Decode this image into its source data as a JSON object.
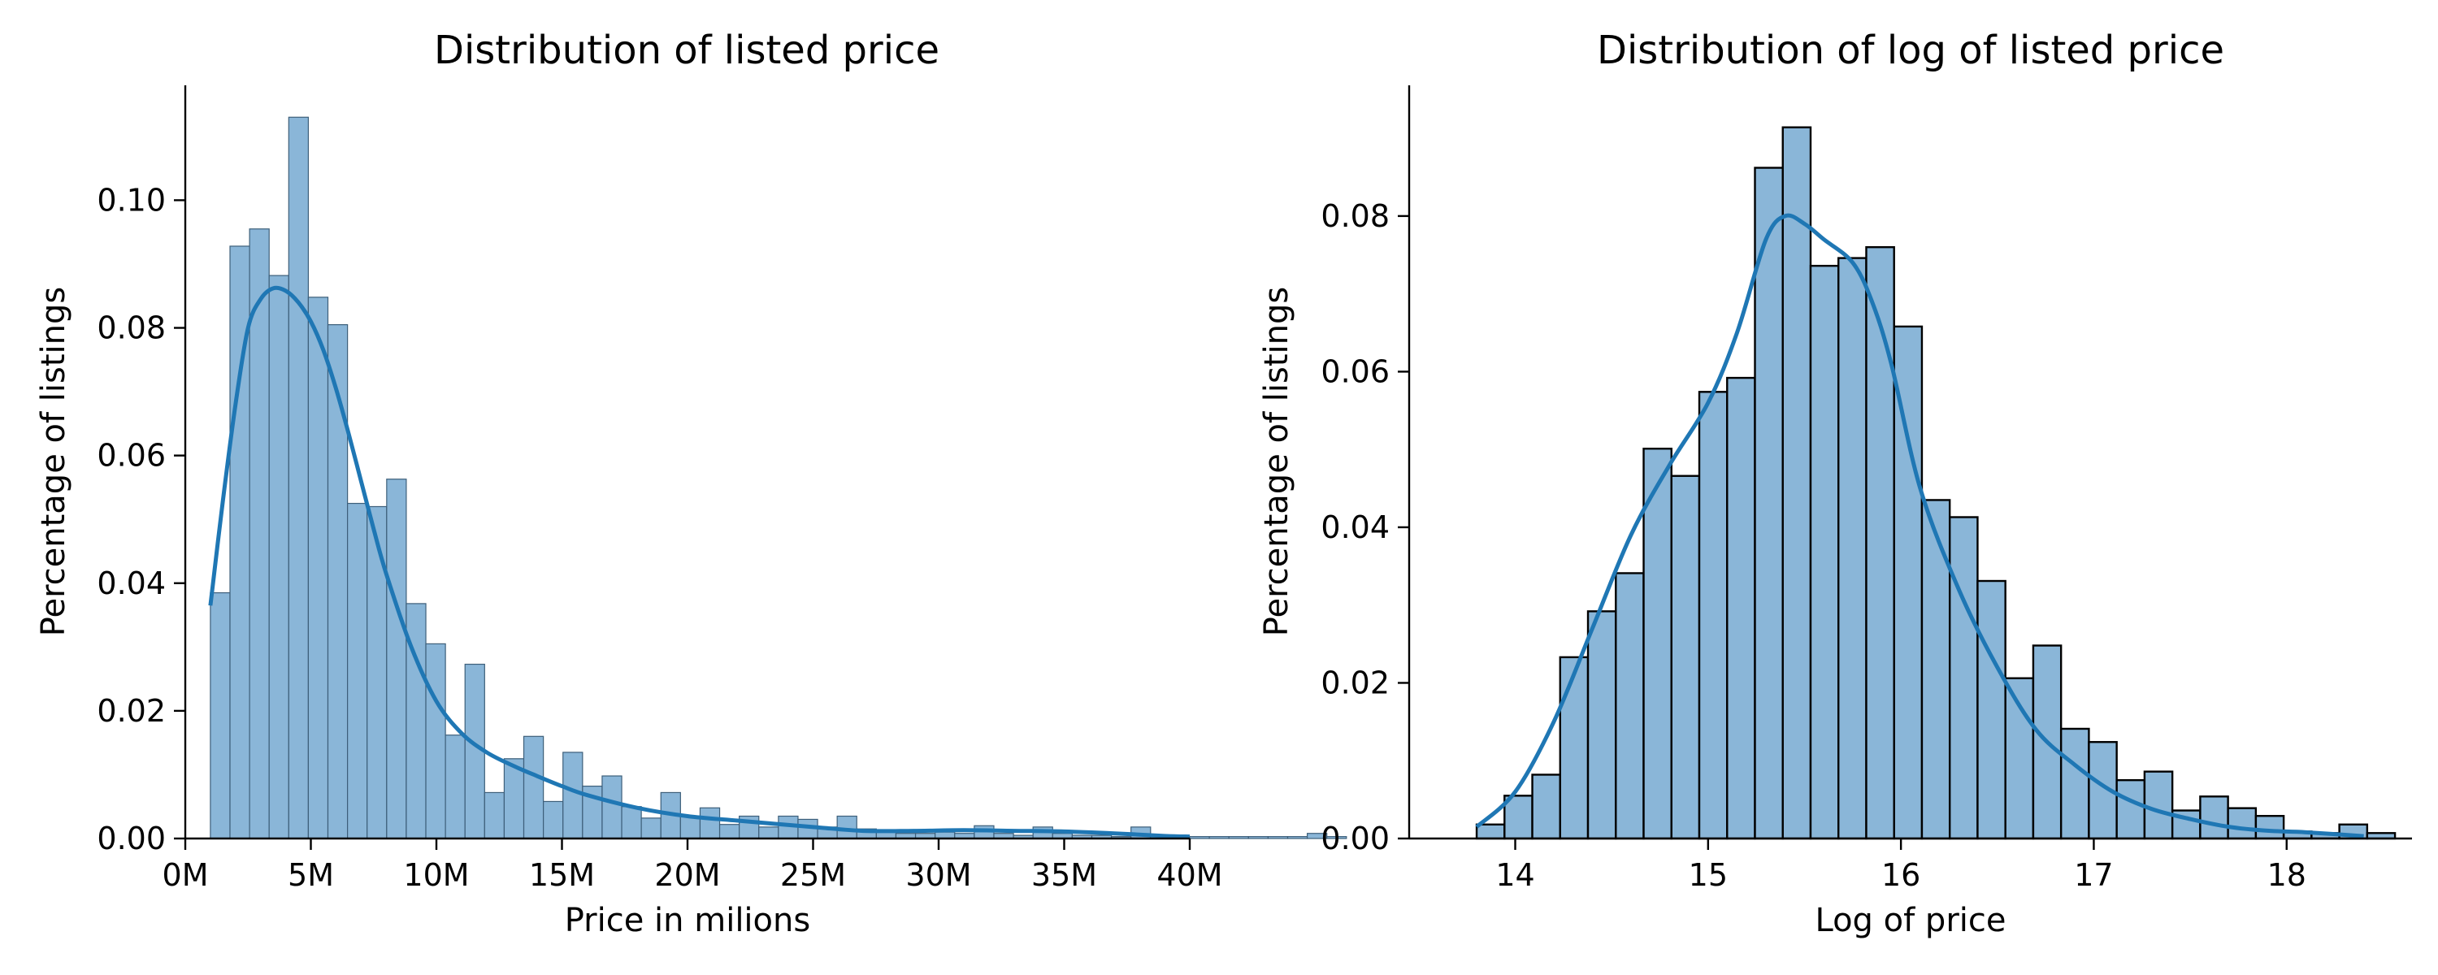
{
  "chart_data": [
    {
      "type": "bar",
      "title": "Distribution of listed price",
      "xlabel": "Price in milions",
      "ylabel": "Percentage of listings",
      "xlim": [
        0,
        40
      ],
      "ylim": [
        0,
        0.118
      ],
      "xticks": [
        0,
        5,
        10,
        15,
        20,
        25,
        30,
        35,
        40
      ],
      "xtick_labels": [
        "0M",
        "5M",
        "10M",
        "15M",
        "20M",
        "25M",
        "30M",
        "35M",
        "40M"
      ],
      "yticks": [
        0.0,
        0.02,
        0.04,
        0.06,
        0.08,
        0.1
      ],
      "ytick_labels": [
        "0.00",
        "0.02",
        "0.04",
        "0.06",
        "0.08",
        "0.10"
      ],
      "bin_start": 1.0,
      "bin_width": 0.78,
      "values": [
        0.0385,
        0.0928,
        0.0955,
        0.0882,
        0.113,
        0.0848,
        0.0805,
        0.0525,
        0.052,
        0.0563,
        0.0368,
        0.0305,
        0.0162,
        0.0273,
        0.0072,
        0.0125,
        0.016,
        0.0058,
        0.0135,
        0.0082,
        0.0098,
        0.005,
        0.0032,
        0.0072,
        0.0035,
        0.0048,
        0.0022,
        0.0035,
        0.0018,
        0.0035,
        0.003,
        0.0018,
        0.0035,
        0.0015,
        0.0012,
        0.0008,
        0.0008,
        0.001,
        0.0008,
        0.002,
        0.0008,
        0.0005,
        0.0018,
        0.0008,
        0.0005,
        0.0005,
        0.0003,
        0.0018,
        0.0003,
        0.0003,
        0.0003,
        0.0003,
        0.0003,
        0.0003,
        0.0003,
        0.0003,
        0.0008,
        0.0003
      ],
      "kde": {
        "x": [
          1.0,
          1.5,
          2.0,
          2.5,
          3.0,
          3.5,
          4.0,
          4.5,
          5.0,
          5.5,
          6.0,
          6.5,
          7.0,
          7.5,
          8.0,
          9.0,
          10.0,
          11.0,
          12.0,
          13.0,
          14.0,
          15.0,
          16.0,
          18.0,
          20.0,
          22.0,
          25.0,
          27.0,
          29.0,
          31.0,
          33.0,
          35.0,
          37.0,
          39.0,
          40.0
        ],
        "y": [
          0.0365,
          0.053,
          0.068,
          0.08,
          0.0845,
          0.0862,
          0.0858,
          0.084,
          0.081,
          0.0765,
          0.0705,
          0.0635,
          0.056,
          0.0485,
          0.0415,
          0.03,
          0.0215,
          0.0165,
          0.0135,
          0.0115,
          0.0098,
          0.0082,
          0.0068,
          0.0048,
          0.0035,
          0.0028,
          0.0018,
          0.0012,
          0.0012,
          0.0013,
          0.0012,
          0.0011,
          0.0008,
          0.0004,
          0.0003
        ]
      }
    },
    {
      "type": "bar",
      "title": "Distribution of log of listed price",
      "xlabel": "Log of price",
      "ylabel": "Percentage of listings",
      "xlim": [
        13.45,
        18.65
      ],
      "ylim": [
        0,
        0.0968
      ],
      "xticks": [
        14,
        15,
        16,
        17,
        18
      ],
      "xtick_labels": [
        "14",
        "15",
        "16",
        "17",
        "18"
      ],
      "yticks": [
        0.0,
        0.02,
        0.04,
        0.06,
        0.08
      ],
      "ytick_labels": [
        "0.00",
        "0.02",
        "0.04",
        "0.06",
        "0.08"
      ],
      "bin_start": 13.8,
      "bin_width": 0.1443,
      "values": [
        0.0018,
        0.0055,
        0.0082,
        0.0233,
        0.0292,
        0.0341,
        0.0501,
        0.0466,
        0.0574,
        0.0592,
        0.0862,
        0.0914,
        0.0736,
        0.0746,
        0.076,
        0.0658,
        0.0435,
        0.0413,
        0.0331,
        0.0206,
        0.0248,
        0.0141,
        0.0124,
        0.0075,
        0.0086,
        0.0036,
        0.0054,
        0.0039,
        0.0029,
        0.0009,
        0.0007,
        0.0018,
        0.0007
      ],
      "kde": {
        "x": [
          13.8,
          14.0,
          14.2,
          14.4,
          14.6,
          14.8,
          15.0,
          15.15,
          15.3,
          15.4,
          15.5,
          15.6,
          15.75,
          15.85,
          15.95,
          16.1,
          16.3,
          16.5,
          16.7,
          16.9,
          17.1,
          17.3,
          17.5,
          17.7,
          17.9,
          18.1,
          18.4
        ],
        "y": [
          0.0015,
          0.006,
          0.015,
          0.027,
          0.039,
          0.048,
          0.056,
          0.065,
          0.077,
          0.08,
          0.079,
          0.077,
          0.074,
          0.069,
          0.061,
          0.045,
          0.032,
          0.022,
          0.014,
          0.0095,
          0.006,
          0.0038,
          0.0025,
          0.0015,
          0.001,
          0.0008,
          0.0003
        ]
      }
    }
  ]
}
